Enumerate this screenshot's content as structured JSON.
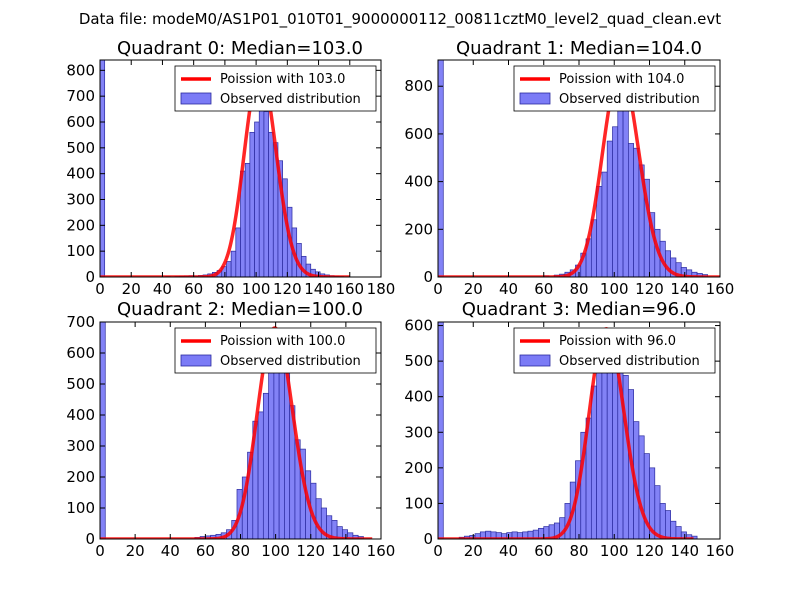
{
  "figure": {
    "suptitle": "Data file: modeM0/AS1P01_010T01_9000000112_00811cztM0_level2_quad_clean.evt"
  },
  "colors": {
    "bar_fill": "#7b7bf6",
    "bar_edge": "#2b2b9f",
    "line": "#ff0000",
    "axes": "#000000"
  },
  "chart_data": [
    {
      "type": "bar",
      "title": "Quadrant 0: Median=103.0",
      "legend": {
        "placement": "top-right",
        "line_label": "Poission with 103.0",
        "bar_label": "Observed distribution"
      },
      "xlim": [
        0,
        180
      ],
      "ylim": [
        0,
        840
      ],
      "xticks": [
        0,
        20,
        40,
        60,
        80,
        100,
        120,
        140,
        160,
        180
      ],
      "yticks": [
        0,
        100,
        200,
        300,
        400,
        500,
        600,
        700,
        800
      ],
      "bin_width": 3,
      "bins": [
        [
          0,
          840
        ],
        [
          42,
          2
        ],
        [
          48,
          2
        ],
        [
          51,
          3
        ],
        [
          54,
          4
        ],
        [
          57,
          5
        ],
        [
          60,
          4
        ],
        [
          63,
          6
        ],
        [
          66,
          8
        ],
        [
          69,
          12
        ],
        [
          72,
          18
        ],
        [
          75,
          25
        ],
        [
          78,
          40
        ],
        [
          81,
          60
        ],
        [
          84,
          100
        ],
        [
          87,
          190
        ],
        [
          90,
          410
        ],
        [
          93,
          440
        ],
        [
          96,
          560
        ],
        [
          99,
          600
        ],
        [
          102,
          760
        ],
        [
          105,
          640
        ],
        [
          108,
          560
        ],
        [
          111,
          520
        ],
        [
          114,
          450
        ],
        [
          117,
          380
        ],
        [
          120,
          270
        ],
        [
          123,
          190
        ],
        [
          126,
          130
        ],
        [
          129,
          80
        ],
        [
          132,
          50
        ],
        [
          135,
          30
        ],
        [
          138,
          20
        ],
        [
          141,
          12
        ],
        [
          144,
          8
        ],
        [
          147,
          5
        ],
        [
          150,
          3
        ],
        [
          153,
          2
        ]
      ],
      "curve": {
        "lambda": 103.0,
        "x_range": [
          0,
          160
        ],
        "peak": 800
      }
    },
    {
      "type": "bar",
      "title": "Quadrant 1: Median=104.0",
      "legend": {
        "placement": "top-right",
        "line_label": "Poission with 104.0",
        "bar_label": "Observed distribution"
      },
      "xlim": [
        0,
        160
      ],
      "ylim": [
        0,
        910
      ],
      "xticks": [
        0,
        20,
        40,
        60,
        80,
        100,
        120,
        140,
        160
      ],
      "yticks": [
        0,
        200,
        400,
        600,
        800
      ],
      "bin_width": 3,
      "bins": [
        [
          0,
          910
        ],
        [
          60,
          5
        ],
        [
          66,
          8
        ],
        [
          69,
          12
        ],
        [
          72,
          20
        ],
        [
          75,
          30
        ],
        [
          78,
          50
        ],
        [
          81,
          100
        ],
        [
          84,
          160
        ],
        [
          87,
          240
        ],
        [
          90,
          380
        ],
        [
          93,
          440
        ],
        [
          96,
          570
        ],
        [
          99,
          630
        ],
        [
          102,
          760
        ],
        [
          105,
          720
        ],
        [
          108,
          560
        ],
        [
          111,
          540
        ],
        [
          114,
          470
        ],
        [
          117,
          410
        ],
        [
          120,
          270
        ],
        [
          123,
          200
        ],
        [
          126,
          150
        ],
        [
          129,
          110
        ],
        [
          132,
          80
        ],
        [
          135,
          60
        ],
        [
          138,
          40
        ],
        [
          141,
          30
        ],
        [
          144,
          20
        ],
        [
          147,
          15
        ],
        [
          150,
          10
        ]
      ],
      "curve": {
        "lambda": 104.0,
        "x_range": [
          0,
          160
        ],
        "peak": 870
      }
    },
    {
      "type": "bar",
      "title": "Quadrant 2: Median=100.0",
      "legend": {
        "placement": "top-right",
        "line_label": "Poission with 100.0",
        "bar_label": "Observed distribution"
      },
      "xlim": [
        0,
        160
      ],
      "ylim": [
        0,
        700
      ],
      "xticks": [
        0,
        20,
        40,
        60,
        80,
        100,
        120,
        140,
        160
      ],
      "yticks": [
        0,
        100,
        200,
        300,
        400,
        500,
        600,
        700
      ],
      "bin_width": 3,
      "bins": [
        [
          0,
          700
        ],
        [
          54,
          5
        ],
        [
          57,
          8
        ],
        [
          60,
          10
        ],
        [
          63,
          12
        ],
        [
          66,
          15
        ],
        [
          69,
          20
        ],
        [
          72,
          30
        ],
        [
          75,
          60
        ],
        [
          78,
          160
        ],
        [
          81,
          200
        ],
        [
          84,
          280
        ],
        [
          87,
          380
        ],
        [
          90,
          410
        ],
        [
          93,
          470
        ],
        [
          96,
          560
        ],
        [
          99,
          590
        ],
        [
          102,
          640
        ],
        [
          105,
          560
        ],
        [
          108,
          430
        ],
        [
          111,
          320
        ],
        [
          114,
          290
        ],
        [
          117,
          220
        ],
        [
          120,
          180
        ],
        [
          123,
          130
        ],
        [
          126,
          100
        ],
        [
          129,
          75
        ],
        [
          132,
          60
        ],
        [
          135,
          40
        ],
        [
          138,
          30
        ],
        [
          141,
          20
        ],
        [
          144,
          12
        ],
        [
          147,
          8
        ]
      ],
      "curve": {
        "lambda": 100.0,
        "x_range": [
          0,
          155
        ],
        "peak": 680
      }
    },
    {
      "type": "bar",
      "title": "Quadrant 3: Median=96.0",
      "legend": {
        "placement": "top-right",
        "line_label": "Poission with 96.0",
        "bar_label": "Observed distribution"
      },
      "xlim": [
        0,
        160
      ],
      "ylim": [
        0,
        610
      ],
      "xticks": [
        0,
        20,
        40,
        60,
        80,
        100,
        120,
        140,
        160
      ],
      "yticks": [
        0,
        100,
        200,
        300,
        400,
        500,
        600
      ],
      "bin_width": 3,
      "bins": [
        [
          0,
          610
        ],
        [
          12,
          5
        ],
        [
          15,
          8
        ],
        [
          18,
          10
        ],
        [
          21,
          15
        ],
        [
          24,
          20
        ],
        [
          27,
          22
        ],
        [
          30,
          20
        ],
        [
          33,
          18
        ],
        [
          36,
          15
        ],
        [
          39,
          18
        ],
        [
          42,
          20
        ],
        [
          45,
          18
        ],
        [
          48,
          20
        ],
        [
          51,
          22
        ],
        [
          54,
          25
        ],
        [
          57,
          30
        ],
        [
          60,
          35
        ],
        [
          63,
          40
        ],
        [
          66,
          45
        ],
        [
          69,
          60
        ],
        [
          72,
          100
        ],
        [
          75,
          160
        ],
        [
          78,
          220
        ],
        [
          81,
          300
        ],
        [
          84,
          340
        ],
        [
          87,
          430
        ],
        [
          90,
          500
        ],
        [
          93,
          530
        ],
        [
          96,
          570
        ],
        [
          99,
          560
        ],
        [
          102,
          530
        ],
        [
          105,
          460
        ],
        [
          108,
          420
        ],
        [
          111,
          330
        ],
        [
          114,
          290
        ],
        [
          117,
          240
        ],
        [
          120,
          200
        ],
        [
          123,
          150
        ],
        [
          126,
          100
        ],
        [
          129,
          80
        ],
        [
          132,
          50
        ],
        [
          135,
          35
        ],
        [
          138,
          20
        ],
        [
          141,
          12
        ],
        [
          144,
          8
        ]
      ],
      "curve": {
        "lambda": 96.0,
        "x_range": [
          0,
          145
        ],
        "peak": 590
      }
    }
  ]
}
